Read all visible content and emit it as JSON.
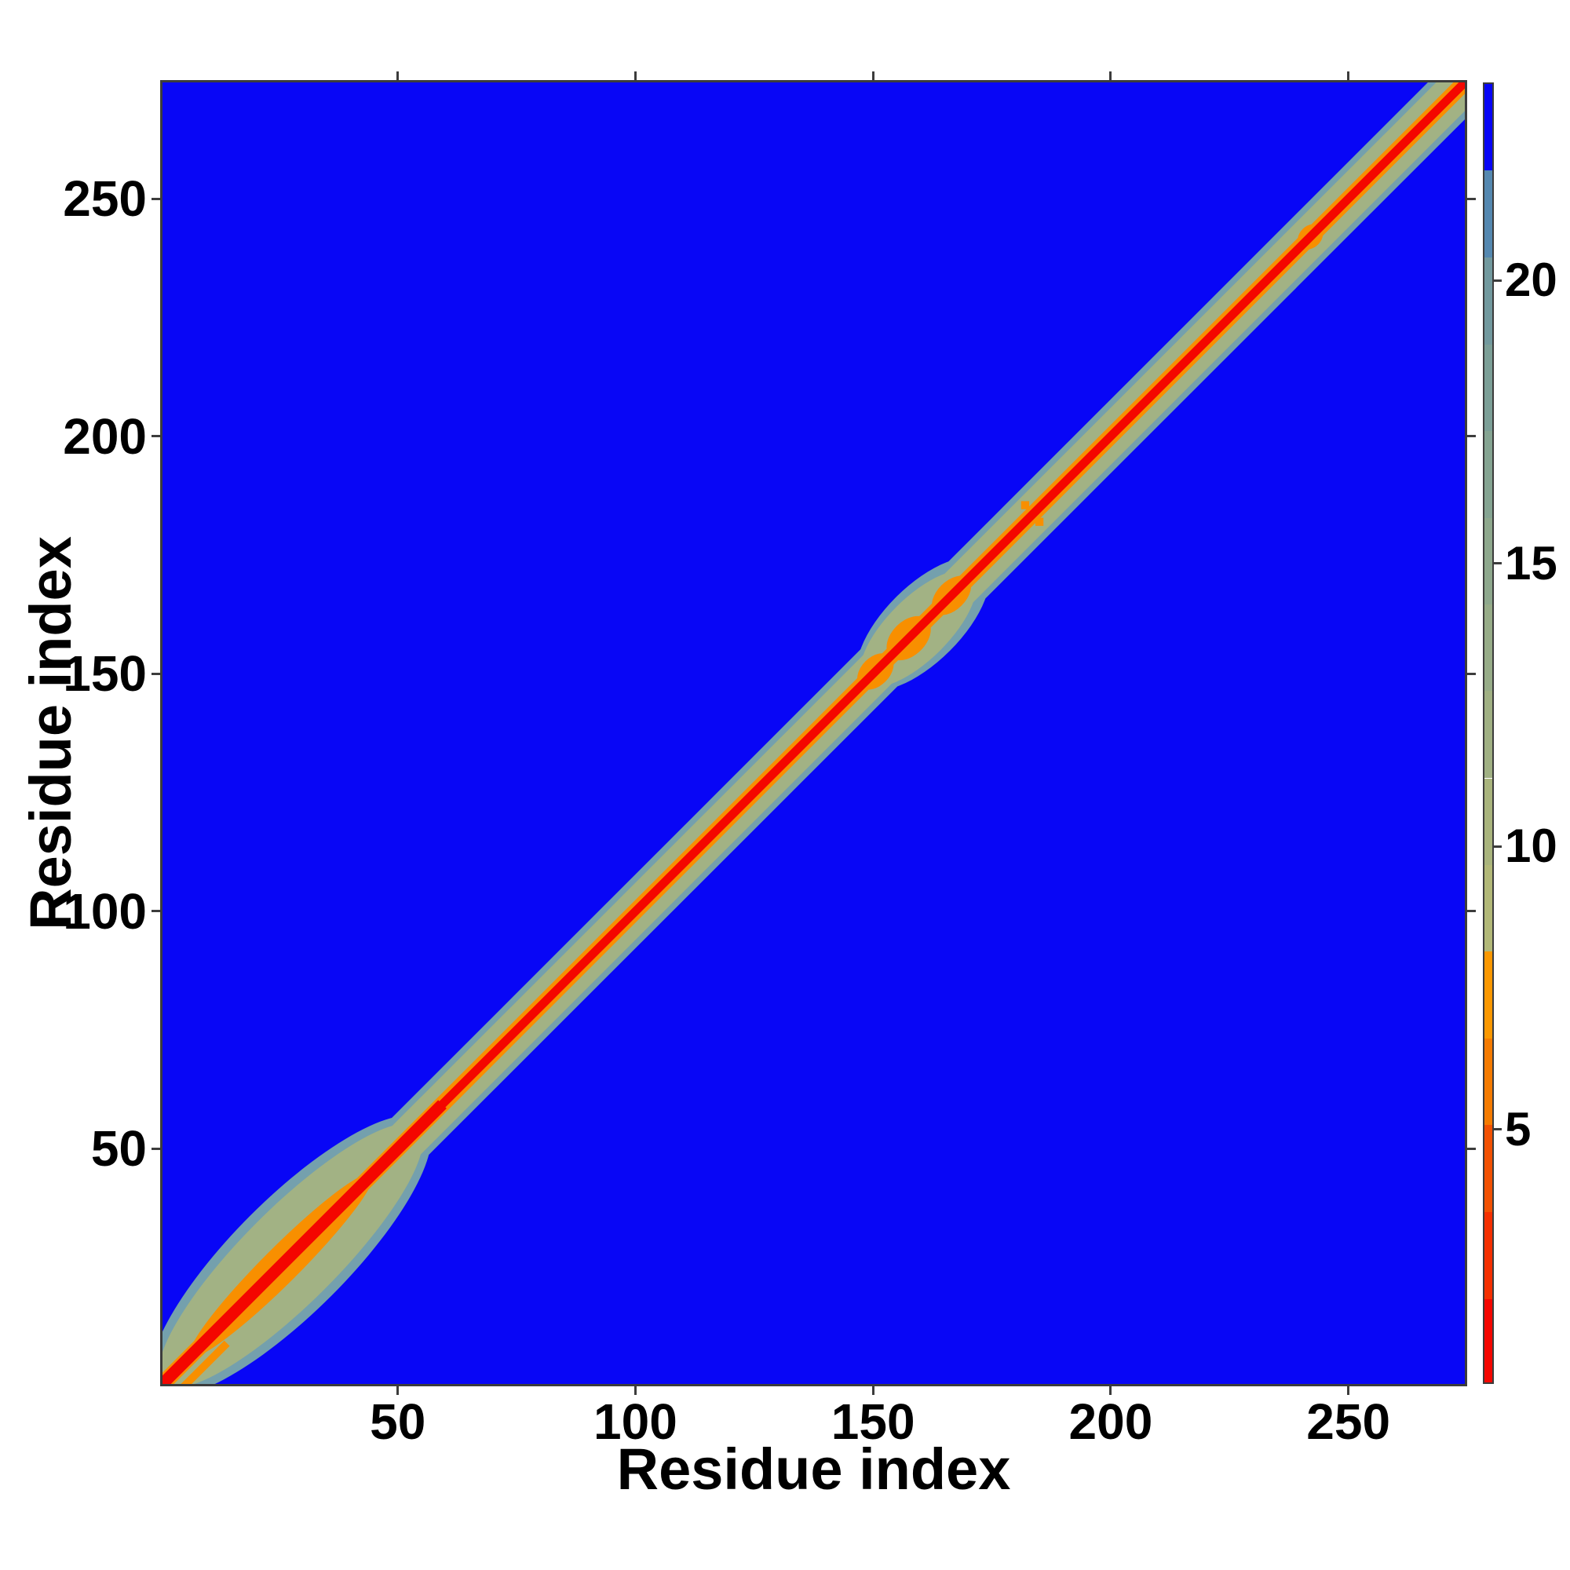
{
  "figure": {
    "background": "#ffffff",
    "tick_color": "#3c3c3c",
    "text_color": "#000000"
  },
  "chart_data": {
    "type": "heatmap",
    "title": "",
    "xlabel": "Residue index",
    "ylabel": "Residue index",
    "xlim": [
      0.5,
      274.5
    ],
    "ylim": [
      0.5,
      274.5
    ],
    "x_ticks": [
      50,
      100,
      150,
      200,
      250
    ],
    "y_ticks": [
      50,
      100,
      150,
      200,
      250
    ],
    "grid": false,
    "background_value_color": "#0806f6",
    "description": "Residue-residue distance map (274 residues). Red core along the main diagonal flanked by orange, inside a sage-green near-diagonal band with a blue-grey fringe; far off-diagonal distances are uniform blue. The band is widest for residues ~1-57 (N-terminal bulge), bulges again around residues ~143-176 with orange cross-shaped contacts near 150, 157 and 166, has tiny orange off-diagonal contacts near (181,185) and a small orange cross near residue 242.",
    "colorbar": {
      "position": "right",
      "vmin": 0.5,
      "vmax": 23.5,
      "ticks": [
        5,
        10,
        15,
        20
      ],
      "segments": [
        {
          "v0": 0.5,
          "v1": 2.03,
          "color": "#f50700"
        },
        {
          "v0": 2.03,
          "v1": 3.57,
          "color": "#f53000"
        },
        {
          "v0": 3.57,
          "v1": 5.1,
          "color": "#f25103"
        },
        {
          "v0": 5.1,
          "v1": 6.63,
          "color": "#f57b00"
        },
        {
          "v0": 6.63,
          "v1": 8.17,
          "color": "#fb9800"
        },
        {
          "v0": 8.17,
          "v1": 9.7,
          "color": "#b2b878"
        },
        {
          "v0": 9.7,
          "v1": 11.23,
          "color": "#a9b47d"
        },
        {
          "v0": 11.23,
          "v1": 12.77,
          "color": "#a0b083"
        },
        {
          "v0": 12.77,
          "v1": 14.3,
          "color": "#97ac88"
        },
        {
          "v0": 14.3,
          "v1": 15.83,
          "color": "#8ea88d"
        },
        {
          "v0": 15.83,
          "v1": 17.37,
          "color": "#85a492"
        },
        {
          "v0": 17.37,
          "v1": 18.9,
          "color": "#7c9f97"
        },
        {
          "v0": 18.9,
          "v1": 20.43,
          "color": "#72999e"
        },
        {
          "v0": 20.43,
          "v1": 21.97,
          "color": "#5588b0"
        },
        {
          "v0": 21.97,
          "v1": 23.5,
          "color": "#0806f6"
        }
      ]
    },
    "features": [
      {
        "kind": "diag-line",
        "t0": 0,
        "t1": 274,
        "o": 0,
        "width": 11,
        "color": "#74a0ad"
      },
      {
        "kind": "ellipse",
        "t": 27,
        "o": 0,
        "rx": 40,
        "ry": 12,
        "color": "#74a0ad"
      },
      {
        "kind": "ellipse",
        "t": 160,
        "o": 0,
        "rx": 18,
        "ry": 8,
        "color": "#74a0ad"
      },
      {
        "kind": "diag-line",
        "t0": 0,
        "t1": 274,
        "o": 0,
        "width": 8.5,
        "color": "#a2b284"
      },
      {
        "kind": "ellipse",
        "t": 27,
        "o": 0,
        "rx": 38,
        "ry": 10,
        "color": "#a2b284"
      },
      {
        "kind": "ellipse",
        "t": 159,
        "o": 0,
        "rx": 16,
        "ry": 6.5,
        "color": "#a2b284"
      },
      {
        "kind": "diag-line",
        "t0": 0,
        "t1": 274,
        "o": 0,
        "width": 3.4,
        "color": "#f88f00"
      },
      {
        "kind": "ellipse",
        "t": 25,
        "o": 0,
        "rx": 27,
        "ry": 3.8,
        "color": "#f88f00"
      },
      {
        "kind": "diag-line",
        "t0": 2,
        "t1": 13,
        "o": -5,
        "width": 1.6,
        "color": "#f88f00"
      },
      {
        "kind": "ellipse",
        "t": 150,
        "o": 0,
        "rx": 4.5,
        "ry": 3,
        "color": "#f88f00"
      },
      {
        "kind": "ellipse",
        "t": 157,
        "o": 0,
        "rx": 5.5,
        "ry": 3.6,
        "color": "#f88f00"
      },
      {
        "kind": "ellipse",
        "t": 166,
        "o": 0,
        "rx": 5,
        "ry": 3,
        "color": "#f88f00"
      },
      {
        "kind": "ellipse",
        "t": 241.5,
        "o": 0,
        "rx": 3,
        "ry": 2.3,
        "color": "#f88f00"
      },
      {
        "kind": "dot",
        "x": 181.5,
        "y": 185,
        "size": 1.7,
        "color": "#f88f00"
      },
      {
        "kind": "dot",
        "x": 184.5,
        "y": 181.5,
        "size": 1.7,
        "color": "#f88f00"
      },
      {
        "kind": "diag-line",
        "t0": 0,
        "t1": 274,
        "o": 0,
        "width": 1.8,
        "color": "#f40600"
      },
      {
        "kind": "diag-line",
        "t0": 0,
        "t1": 58,
        "o": 0,
        "width": 2.5,
        "color": "#f40600"
      }
    ]
  }
}
